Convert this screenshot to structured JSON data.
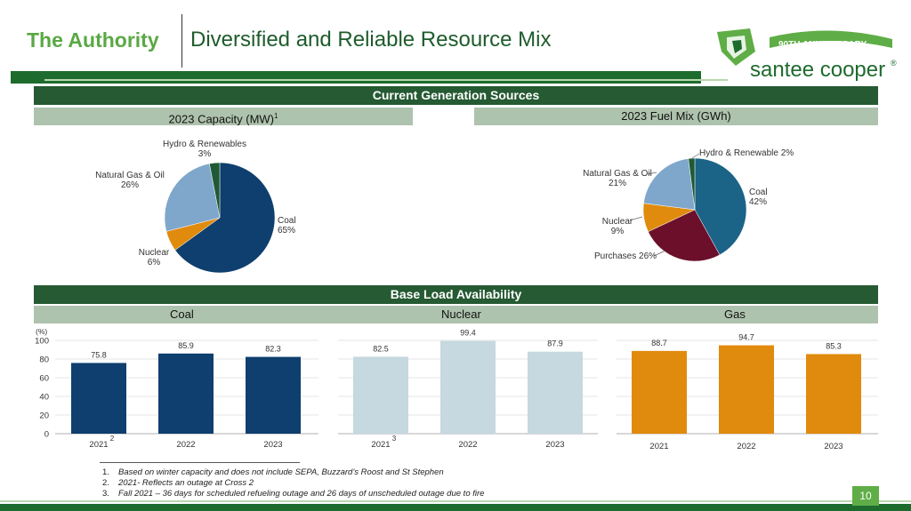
{
  "header": {
    "org": "The Authority",
    "title": "Diversified and Reliable Resource Mix",
    "logo_text": "santee cooper",
    "logo_reg": "®",
    "logo_anniv": "90TH ANNIVERSARY"
  },
  "sections": {
    "current": "Current Generation Sources",
    "capacity": "2023 Capacity (MW)",
    "capacity_sup": "1",
    "fuelmix": "2023 Fuel Mix (GWh)",
    "baseload": "Base Load Availability",
    "coal": "Coal",
    "nuclear": "Nuclear",
    "gas": "Gas"
  },
  "colors": {
    "coal": "#0e3f6e",
    "nuclear": "#e08b0d",
    "gas_oil": "#7fa7cb",
    "hydro": "#1f5a35",
    "coal_fuel": "#1b6387",
    "purchases": "#6b0f2b",
    "nuclear_bar": "#c6d8e0",
    "gas_bar": "#e08b0d"
  },
  "pie_labels": {
    "cap_hydro": "Hydro & Renewables",
    "cap_hydro_pct": "3%",
    "cap_gas": "Natural Gas & Oil",
    "cap_gas_pct": "26%",
    "cap_coal": "Coal",
    "cap_coal_pct": "65%",
    "cap_nuclear": "Nuclear",
    "cap_nuclear_pct": "6%",
    "fuel_hydro": "Hydro & Renewable 2%",
    "fuel_gas": "Natural Gas & Oil",
    "fuel_gas_pct": "21%",
    "fuel_coal": "Coal",
    "fuel_coal_pct": "42%",
    "fuel_nuclear": "Nuclear",
    "fuel_nuclear_pct": "9%",
    "fuel_purchases": "Purchases 26%"
  },
  "chart_data": [
    {
      "type": "pie",
      "title": "2023 Capacity (MW)",
      "labels": [
        "Coal",
        "Nuclear",
        "Natural Gas & Oil",
        "Hydro & Renewables"
      ],
      "values": [
        65,
        6,
        26,
        3
      ]
    },
    {
      "type": "pie",
      "title": "2023 Fuel Mix (GWh)",
      "labels": [
        "Coal",
        "Purchases",
        "Nuclear",
        "Natural Gas & Oil",
        "Hydro & Renewable"
      ],
      "values": [
        42,
        26,
        9,
        21,
        2
      ]
    },
    {
      "type": "bar",
      "title": "Coal",
      "ylabel": "(%)",
      "categories": [
        "2021",
        "2022",
        "2023"
      ],
      "values": [
        75.8,
        85.9,
        82.3
      ],
      "ylim": [
        0,
        100
      ],
      "yticks": [
        "0",
        "20",
        "40",
        "60",
        "80",
        "100"
      ],
      "note": "2"
    },
    {
      "type": "bar",
      "title": "Nuclear",
      "categories": [
        "2021",
        "2022",
        "2023"
      ],
      "values": [
        82.5,
        99.4,
        87.9
      ],
      "ylim": [
        0,
        100
      ],
      "note": "3"
    },
    {
      "type": "bar",
      "title": "Gas",
      "categories": [
        "2021",
        "2022",
        "2023"
      ],
      "values": [
        88.7,
        94.7,
        85.3
      ],
      "ylim": [
        0,
        100
      ]
    }
  ],
  "footnotes": [
    {
      "n": "1.",
      "text": "Based on winter capacity and does not include SEPA, Buzzard’s Roost and St Stephen"
    },
    {
      "n": "2.",
      "text": "2021- Reflects an outage at Cross 2"
    },
    {
      "n": "3.",
      "text": "Fall 2021 – 36 days for scheduled refueling outage and 26 days of unscheduled outage due to fire"
    }
  ],
  "page_number": "10"
}
